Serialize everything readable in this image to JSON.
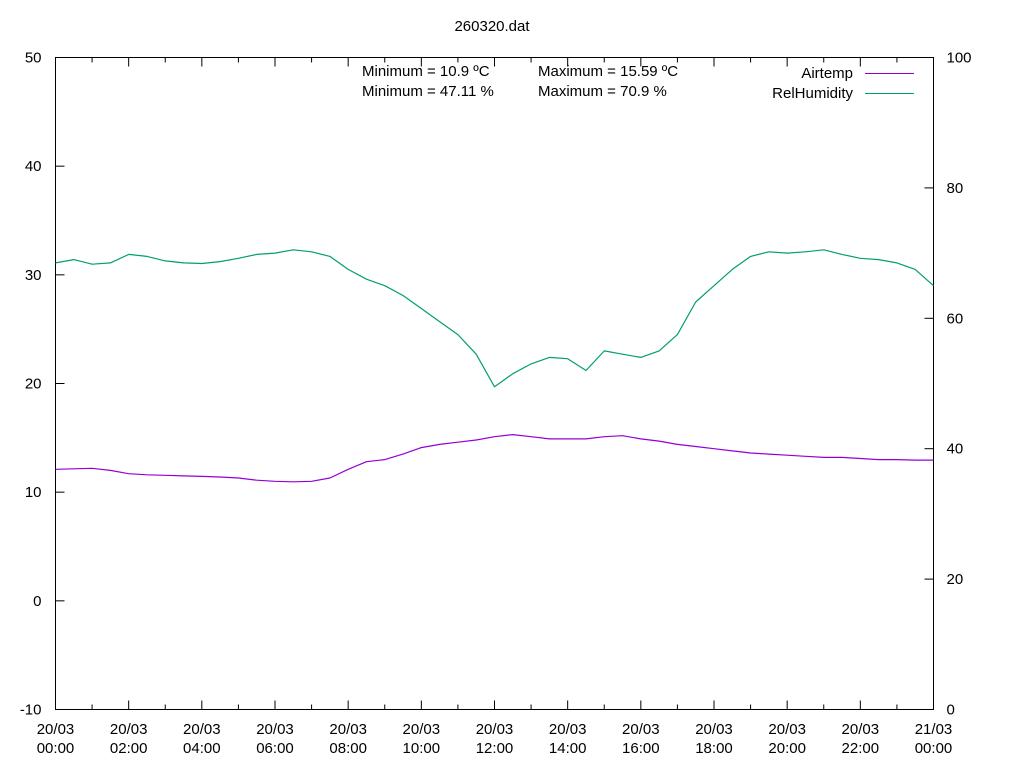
{
  "chart_data": {
    "type": "line",
    "title": "260320.dat",
    "x_axis": {
      "range": [
        "20/03 00:00",
        "21/03 00:00"
      ],
      "tick_labels": [
        [
          "20/03",
          "00:00"
        ],
        [
          "20/03",
          "02:00"
        ],
        [
          "20/03",
          "04:00"
        ],
        [
          "20/03",
          "06:00"
        ],
        [
          "20/03",
          "08:00"
        ],
        [
          "20/03",
          "10:00"
        ],
        [
          "20/03",
          "12:00"
        ],
        [
          "20/03",
          "14:00"
        ],
        [
          "20/03",
          "16:00"
        ],
        [
          "20/03",
          "18:00"
        ],
        [
          "20/03",
          "20:00"
        ],
        [
          "20/03",
          "22:00"
        ],
        [
          "21/03",
          "00:00"
        ]
      ]
    },
    "y_axis": {
      "range": [
        -10,
        50
      ],
      "ticks": [
        -10,
        0,
        10,
        20,
        30,
        40,
        50
      ],
      "series": "Airtemp"
    },
    "y2_axis": {
      "range": [
        0,
        100
      ],
      "ticks": [
        0,
        20,
        40,
        60,
        80,
        100
      ],
      "series": "RelHumidity"
    },
    "grid": false,
    "legend_position": "top-right",
    "annotations": [
      [
        "Minimum = 10.9 ºC",
        "Maximum = 15.59 ºC"
      ],
      [
        "Minimum = 47.11 %",
        "Maximum = 70.9 %"
      ]
    ],
    "x": [
      "00:00",
      "00:30",
      "01:00",
      "01:30",
      "02:00",
      "02:30",
      "03:00",
      "03:30",
      "04:00",
      "04:30",
      "05:00",
      "05:30",
      "06:00",
      "06:30",
      "07:00",
      "07:30",
      "08:00",
      "08:30",
      "09:00",
      "09:30",
      "10:00",
      "10:30",
      "11:00",
      "11:30",
      "12:00",
      "12:30",
      "13:00",
      "13:30",
      "14:00",
      "14:30",
      "15:00",
      "15:30",
      "16:00",
      "16:30",
      "17:00",
      "17:30",
      "18:00",
      "18:30",
      "19:00",
      "19:30",
      "20:00",
      "20:30",
      "21:00",
      "21:30",
      "22:00",
      "22:30",
      "23:00",
      "23:30",
      "00:00"
    ],
    "series": [
      {
        "name": "Airtemp",
        "axis": "y",
        "color": "#9400d3",
        "values": [
          12.1,
          12.15,
          12.2,
          12.0,
          11.7,
          11.6,
          11.55,
          11.5,
          11.45,
          11.4,
          11.3,
          11.1,
          11.0,
          10.95,
          11.0,
          11.3,
          12.1,
          12.8,
          13.0,
          13.5,
          14.1,
          14.4,
          14.6,
          14.8,
          15.1,
          15.3,
          15.1,
          14.9,
          14.9,
          14.9,
          15.1,
          15.2,
          14.9,
          14.7,
          14.4,
          14.2,
          14.0,
          13.8,
          13.6,
          13.5,
          13.4,
          13.3,
          13.2,
          13.2,
          13.1,
          13.0,
          13.0,
          12.95,
          12.95
        ]
      },
      {
        "name": "RelHumidity",
        "axis": "y2",
        "color": "#009e73",
        "values": [
          68.5,
          69.0,
          68.3,
          68.5,
          69.8,
          69.5,
          68.8,
          68.5,
          68.4,
          68.7,
          69.2,
          69.8,
          70.0,
          70.5,
          70.2,
          69.5,
          67.5,
          66.0,
          65.0,
          63.5,
          61.5,
          59.5,
          57.5,
          54.5,
          49.5,
          51.5,
          53.0,
          54.0,
          53.8,
          52.0,
          55.0,
          54.5,
          54.0,
          55.0,
          57.5,
          62.5,
          65.0,
          67.5,
          69.5,
          70.2,
          70.0,
          70.2,
          70.5,
          69.8,
          69.2,
          69.0,
          68.5,
          67.5,
          65.0
        ]
      }
    ]
  }
}
